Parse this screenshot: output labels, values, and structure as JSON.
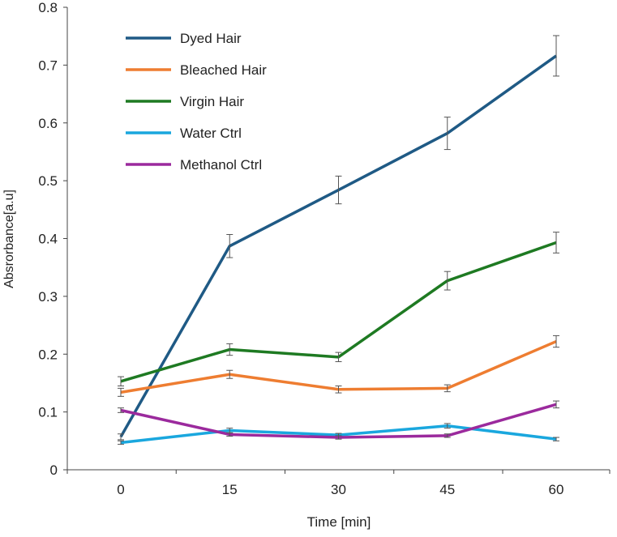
{
  "chart_data": {
    "type": "line",
    "title": "",
    "xlabel": "Time [min]",
    "ylabel": "Absrorbance[a.u]",
    "x": [
      0,
      15,
      30,
      45,
      60
    ],
    "xticks": [
      "0",
      "15",
      "30",
      "45",
      "60"
    ],
    "ylim": [
      0,
      0.8
    ],
    "yticks": [
      "0",
      "0.1",
      "0.2",
      "0.3",
      "0.4",
      "0.5",
      "0.6",
      "0.7",
      "0.8"
    ],
    "grid": false,
    "legend": "top-left",
    "series": [
      {
        "name": "Dyed Hair",
        "color": "#1f5a85",
        "values": [
          0.057,
          0.387,
          0.484,
          0.582,
          0.716
        ],
        "errors": [
          0.005,
          0.02,
          0.024,
          0.028,
          0.035
        ]
      },
      {
        "name": "Bleached Hair",
        "color": "#ee7d31",
        "values": [
          0.134,
          0.165,
          0.139,
          0.141,
          0.222
        ],
        "errors": [
          0.007,
          0.007,
          0.006,
          0.006,
          0.01
        ]
      },
      {
        "name": "Virgin Hair",
        "color": "#1e7a22",
        "values": [
          0.153,
          0.208,
          0.195,
          0.327,
          0.393
        ],
        "errors": [
          0.008,
          0.01,
          0.008,
          0.016,
          0.018
        ]
      },
      {
        "name": "Water Ctrl",
        "color": "#1aa7de",
        "values": [
          0.047,
          0.068,
          0.06,
          0.076,
          0.053
        ],
        "errors": [
          0.003,
          0.004,
          0.003,
          0.004,
          0.003
        ]
      },
      {
        "name": "Methanol Ctrl",
        "color": "#9b2a9d",
        "values": [
          0.103,
          0.061,
          0.056,
          0.059,
          0.113
        ],
        "errors": [
          0.004,
          0.003,
          0.003,
          0.003,
          0.006
        ]
      }
    ]
  }
}
